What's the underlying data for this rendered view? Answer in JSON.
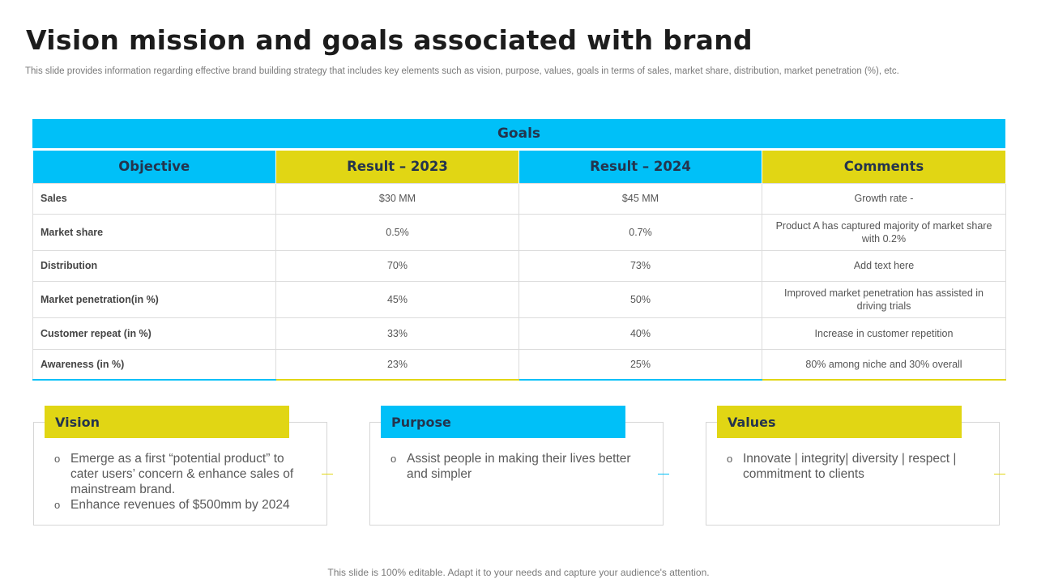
{
  "header": {
    "title": "Vision mission and goals associated with brand",
    "subtitle": "This slide provides information regarding effective brand building strategy that includes key elements such as vision, purpose, values, goals in terms of sales, market share, distribution, market penetration (%), etc."
  },
  "colors": {
    "accent_blue": "#00c0f8",
    "accent_yellow": "#e1d614",
    "heading_text": "#24344d"
  },
  "goals_table": {
    "title": "Goals",
    "columns": [
      "Objective",
      "Result – 2023",
      "Result – 2024",
      "Comments"
    ],
    "rows": [
      {
        "objective": "Sales",
        "r2023": "$30 MM",
        "r2024": "$45 MM",
        "comment": "Growth rate -"
      },
      {
        "objective": "Market share",
        "r2023": "0.5%",
        "r2024": "0.7%",
        "comment": "Product A has captured majority of market share with 0.2%"
      },
      {
        "objective": "Distribution",
        "r2023": "70%",
        "r2024": "73%",
        "comment": "Add text here"
      },
      {
        "objective": "Market penetration(in %)",
        "r2023": "45%",
        "r2024": "50%",
        "comment": "Improved  market penetration has assisted in driving trials"
      },
      {
        "objective": "Customer  repeat (in %)",
        "r2023": "33%",
        "r2024": "40%",
        "comment": "Increase in customer repetition"
      },
      {
        "objective": "Awareness  (in %)",
        "r2023": "23%",
        "r2024": "25%",
        "comment": "80% among niche and 30% overall"
      }
    ]
  },
  "cards": [
    {
      "title": "Vision",
      "bullet_icon": "circle-bullet-icon",
      "items": [
        "Emerge as a first “potential product” to cater users’ concern & enhance sales of mainstream brand.",
        "Enhance revenues  of $500mm by 2024"
      ]
    },
    {
      "title": "Purpose",
      "bullet_icon": "circle-bullet-icon",
      "items": [
        "Assist people in making their lives better and simpler"
      ]
    },
    {
      "title": "Values",
      "bullet_icon": "circle-bullet-icon",
      "items": [
        "Innovate  | integrity|  diversity | respect | commitment to clients"
      ]
    }
  ],
  "footer": {
    "text": "This slide is 100% editable. Adapt it to your needs and capture your audience's attention."
  }
}
